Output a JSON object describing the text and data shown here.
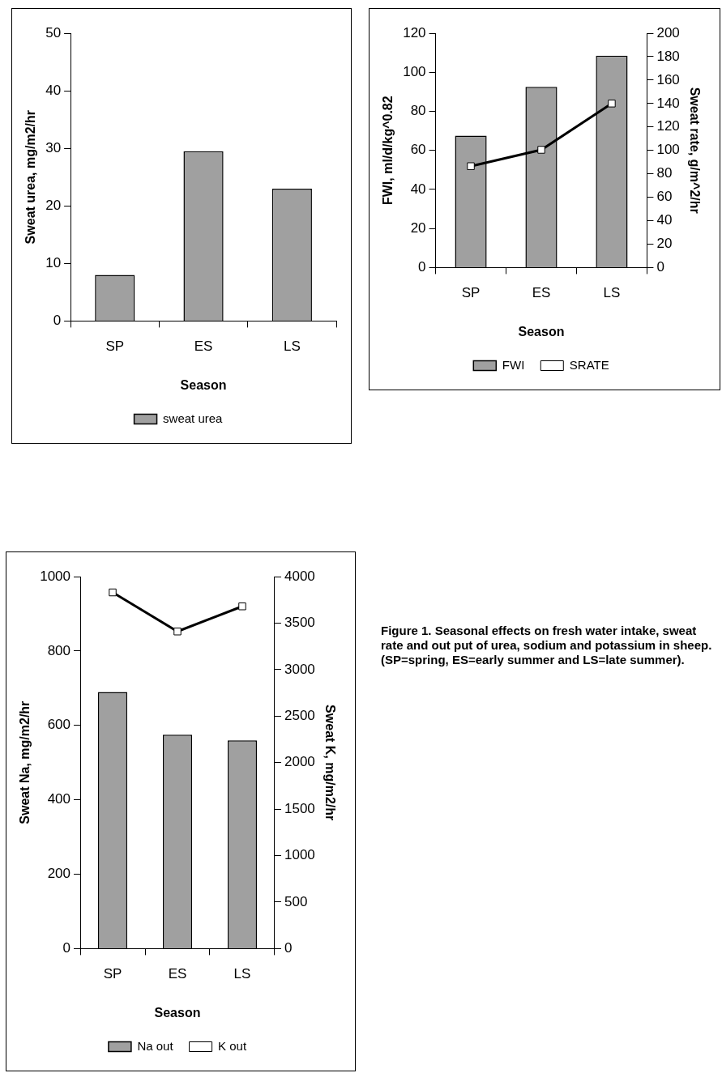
{
  "chart_data": [
    {
      "type": "bar",
      "categories": [
        "SP",
        "ES",
        "LS"
      ],
      "xlabel": "Season",
      "ylabel": "Sweat urea, mg/m2/hr",
      "ylim": [
        0,
        50
      ],
      "yticks": [
        0,
        10,
        20,
        30,
        40,
        50
      ],
      "legend": "bottom",
      "series": [
        {
          "name": "sweat urea",
          "color": "#a0a0a0",
          "values": [
            8,
            29.5,
            23
          ]
        }
      ]
    },
    {
      "type": "bar",
      "categories": [
        "SP",
        "ES",
        "LS"
      ],
      "xlabel": "Season",
      "ylabel": "FWI, ml/d/kg^0.82",
      "y2label": "Sweat rate, g/m^2/hr",
      "ylim": [
        0,
        120
      ],
      "yticks": [
        0,
        20,
        40,
        60,
        80,
        100,
        120
      ],
      "y2lim": [
        0,
        200
      ],
      "y2ticks": [
        0,
        20,
        40,
        60,
        80,
        100,
        120,
        140,
        160,
        180,
        200
      ],
      "legend": "bottom",
      "series": [
        {
          "name": "FWI",
          "color": "#a0a0a0",
          "values": [
            67.5,
            92.5,
            108.5
          ]
        },
        {
          "name": "SRATE",
          "type": "line",
          "axis": "y2",
          "marker": "square",
          "color": "#000000",
          "values": [
            86.5,
            100.5,
            140
          ]
        }
      ]
    },
    {
      "type": "bar",
      "categories": [
        "SP",
        "ES",
        "LS"
      ],
      "xlabel": "Season",
      "ylabel": "Sweat Na, mg/m2/hr",
      "y2label": "Sweat K, mg/m2/hr",
      "ylim": [
        0,
        1000
      ],
      "yticks": [
        0,
        200,
        400,
        600,
        800,
        1000
      ],
      "y2lim": [
        0,
        4000
      ],
      "y2ticks": [
        0,
        500,
        1000,
        1500,
        2000,
        2500,
        3000,
        3500,
        4000
      ],
      "legend": "bottom",
      "series": [
        {
          "name": "Na out",
          "color": "#a0a0a0",
          "values": [
            690,
            575,
            560
          ]
        },
        {
          "name": "K out",
          "type": "line",
          "axis": "y2",
          "marker": "square",
          "color": "#000000",
          "values": [
            3830,
            3410,
            3680
          ]
        }
      ]
    },
    {
      "type": "other",
      "title": "Figure 1.  Seasonal effects on fresh water intake, sweat rate and out put of urea, sodium and potassium in sheep.",
      "annotations": [
        "(SP=spring, ES=early summer and LS=late summer)."
      ]
    }
  ]
}
